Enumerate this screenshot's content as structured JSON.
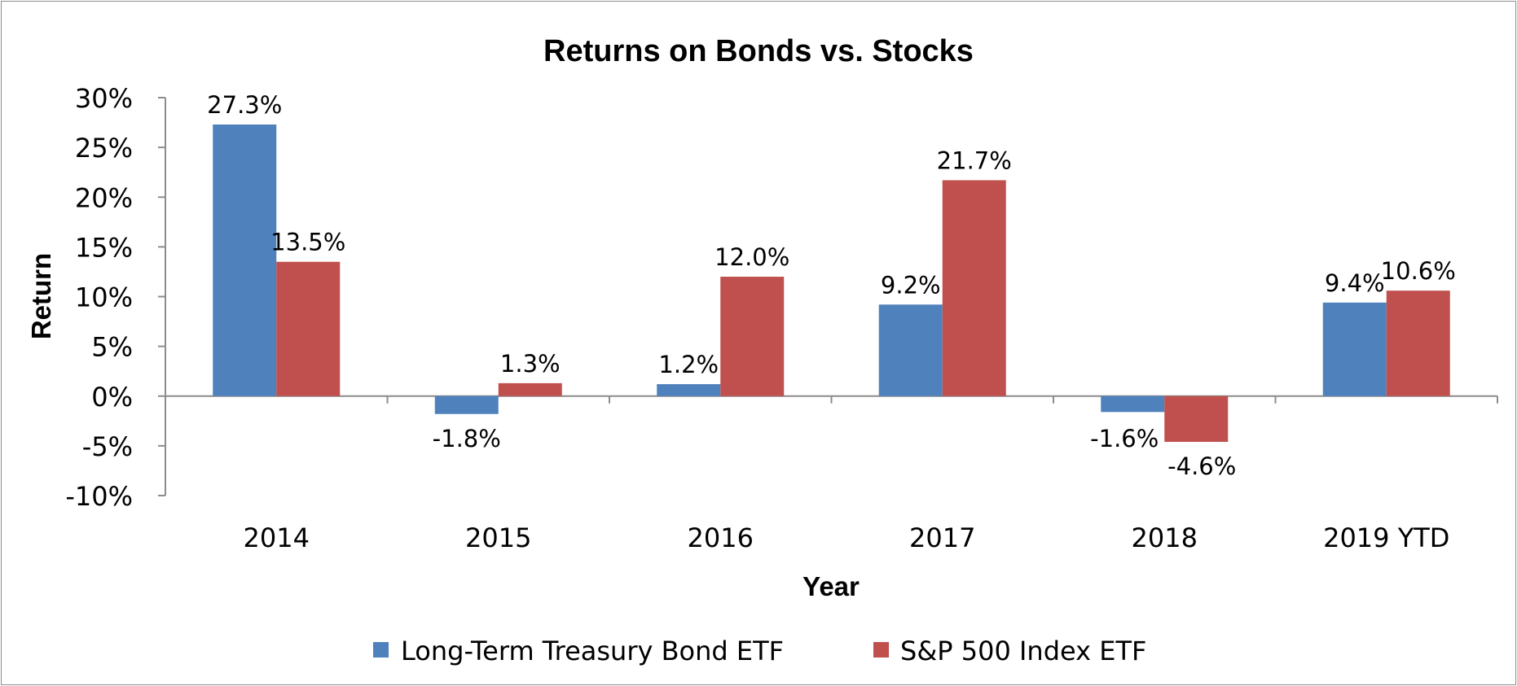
{
  "chart_data": {
    "type": "bar",
    "title": "Returns on Bonds vs. Stocks",
    "xlabel": "Year",
    "ylabel": "Return",
    "categories": [
      "2014",
      "2015",
      "2016",
      "2017",
      "2018",
      "2019 YTD"
    ],
    "series": [
      {
        "name": "Long-Term Treasury Bond ETF",
        "color": "#4f81bd",
        "values": [
          27.3,
          -1.8,
          1.2,
          9.2,
          -1.6,
          9.4
        ],
        "labels": [
          "27.3%",
          "-1.8%",
          "1.2%",
          "9.2%",
          "-1.6%",
          "9.4%"
        ]
      },
      {
        "name": "S&P 500 Index ETF",
        "color": "#c0504d",
        "values": [
          13.5,
          1.3,
          12.0,
          21.7,
          -4.6,
          10.6
        ],
        "labels": [
          "13.5%",
          "1.3%",
          "12.0%",
          "21.7%",
          "-4.6%",
          "10.6%"
        ]
      }
    ],
    "ylim": [
      -10,
      30
    ],
    "yticks": [
      30,
      25,
      20,
      15,
      10,
      5,
      0,
      -5,
      -10
    ],
    "ytick_labels": [
      "30%",
      "25%",
      "20%",
      "15%",
      "10%",
      "5%",
      "0%",
      "-5%",
      "-10%"
    ],
    "grid": false,
    "legend_position": "bottom"
  }
}
